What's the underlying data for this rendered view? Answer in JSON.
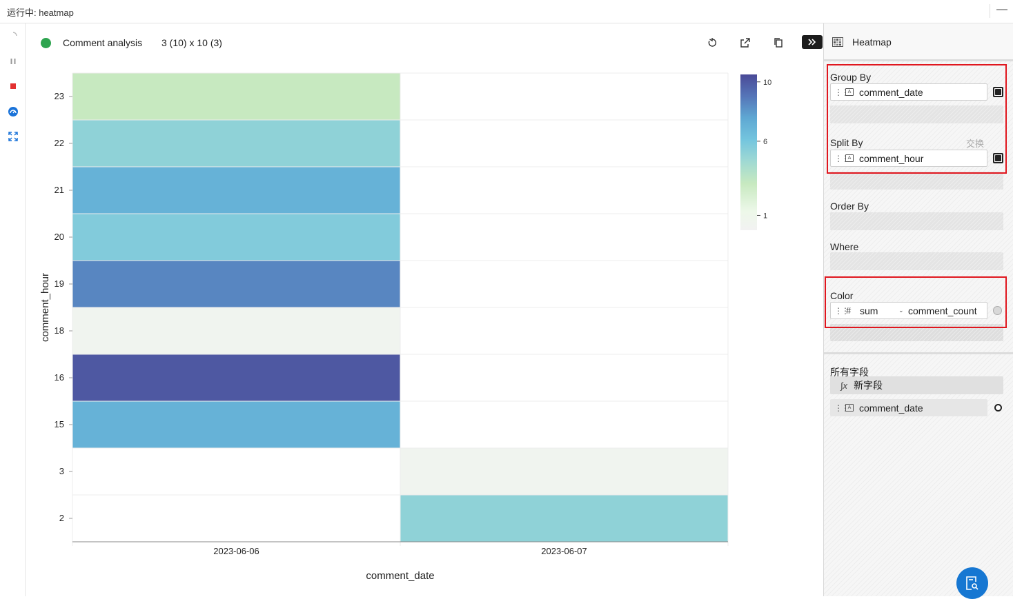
{
  "window": {
    "title": "运行中: heatmap",
    "minimize_glyph": "—"
  },
  "rail": {
    "icons": [
      "spinner-icon",
      "pause-icon",
      "stop-icon",
      "gauge-icon",
      "expand-icon"
    ]
  },
  "chart_header": {
    "title": "Comment analysis",
    "dimensions": "3 (10) x 10 (3)",
    "status_color": "#2ea44f"
  },
  "chart_data": {
    "type": "heatmap",
    "title": "",
    "xlabel": "comment_date",
    "ylabel": "comment_hour",
    "x_categories": [
      "2023-06-06",
      "2023-06-07"
    ],
    "y_categories": [
      "23",
      "22",
      "21",
      "20",
      "19",
      "18",
      "16",
      "15",
      "3",
      "2"
    ],
    "values": [
      [
        3,
        null
      ],
      [
        5,
        null
      ],
      [
        7,
        null
      ],
      [
        5.5,
        null
      ],
      [
        8.5,
        null
      ],
      [
        0.5,
        null
      ],
      [
        10,
        null
      ],
      [
        7,
        null
      ],
      [
        null,
        0.5
      ],
      [
        null,
        5
      ]
    ],
    "colorbar": {
      "range": [
        0,
        10.5
      ],
      "ticks": [
        10,
        6,
        1
      ]
    },
    "colors": [
      "#f2f2f2",
      "#edf8e9",
      "#c7e9c0",
      "#9dd8d4",
      "#74c5de",
      "#5fa8d3",
      "#5575b8",
      "#4a4a97"
    ]
  },
  "panel": {
    "title": "Heatmap",
    "group_by": {
      "label": "Group By",
      "field": "comment_date"
    },
    "split_by": {
      "label": "Split By",
      "field": "comment_hour",
      "swap": "交换"
    },
    "order_by": {
      "label": "Order By"
    },
    "where": {
      "label": "Where"
    },
    "color": {
      "label": "Color",
      "aggregate": "sum",
      "field": "comment_count"
    },
    "all_fields": {
      "label": "所有字段",
      "new_field": "新字段",
      "fields": [
        "comment_date"
      ]
    }
  },
  "highlight_color": "#e0161e",
  "accent": "#1677d2"
}
